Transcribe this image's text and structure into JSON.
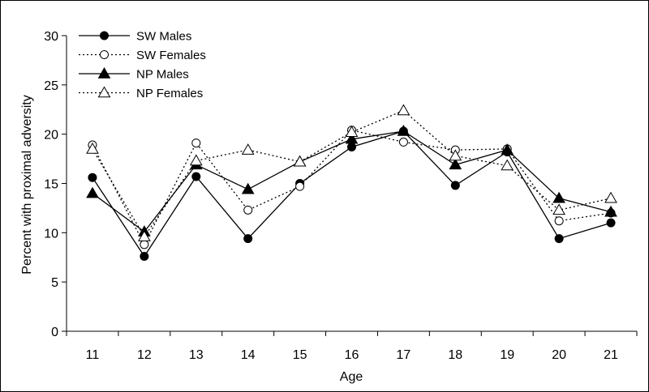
{
  "chart_data": {
    "type": "line",
    "title": "",
    "xlabel": "Age",
    "ylabel": "Percent with proximal adversity",
    "categories": [
      "11",
      "12",
      "13",
      "14",
      "15",
      "16",
      "17",
      "18",
      "19",
      "20",
      "21"
    ],
    "ylim": [
      0,
      30
    ],
    "yticks": [
      "0",
      "5",
      "10",
      "15",
      "20",
      "25",
      "30"
    ],
    "grid": false,
    "legend_position": "top-left",
    "series": [
      {
        "name": "SW Males",
        "line": "solid",
        "marker": "circle",
        "filled": true,
        "values": [
          15.6,
          7.6,
          15.7,
          9.4,
          15.0,
          18.7,
          20.3,
          14.8,
          18.2,
          9.4,
          11.0
        ]
      },
      {
        "name": "SW Females",
        "line": "dotted",
        "marker": "circle",
        "filled": false,
        "values": [
          18.9,
          8.8,
          19.1,
          12.3,
          14.7,
          20.4,
          19.2,
          18.4,
          18.5,
          11.2,
          12.0
        ]
      },
      {
        "name": "NP Males",
        "line": "solid",
        "marker": "triangle",
        "filled": true,
        "values": [
          14.0,
          10.1,
          16.9,
          14.4,
          17.2,
          19.5,
          20.3,
          16.9,
          18.4,
          13.5,
          12.1
        ]
      },
      {
        "name": "NP Females",
        "line": "dotted",
        "marker": "triangle",
        "filled": false,
        "values": [
          18.5,
          9.6,
          17.3,
          18.4,
          17.2,
          20.2,
          22.4,
          17.8,
          16.8,
          12.3,
          13.5
        ]
      }
    ]
  }
}
